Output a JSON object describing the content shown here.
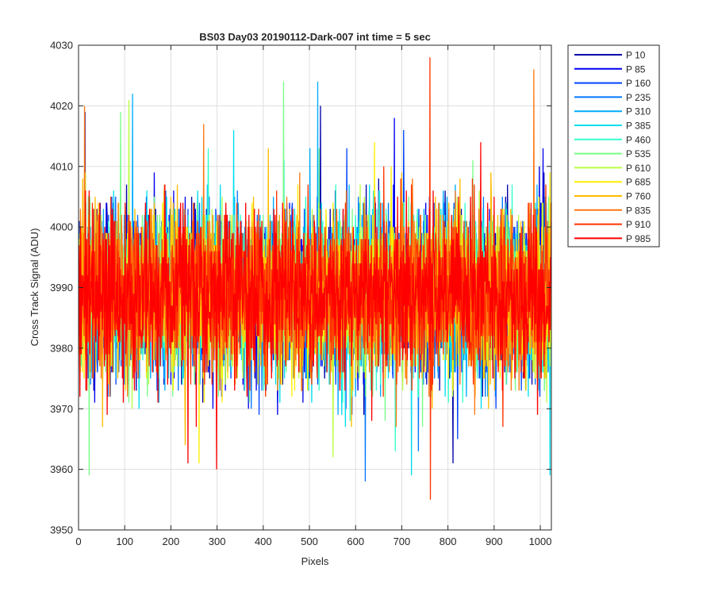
{
  "chart_data": {
    "type": "line",
    "title": "BS03 Day03 20190112-Dark-007 int time = 5 sec",
    "xlabel": "Pixels",
    "ylabel": "Cross Track Signal (ADU)",
    "xlim": [
      0,
      1024
    ],
    "ylim": [
      3950,
      4030
    ],
    "xticks": [
      0,
      100,
      200,
      300,
      400,
      500,
      600,
      700,
      800,
      900,
      1000
    ],
    "yticks": [
      3950,
      3960,
      3970,
      3980,
      3990,
      4000,
      4010,
      4020,
      4030
    ],
    "grid": true,
    "legend_position": "outside-top-right",
    "x_points_per_series": 1024,
    "series": [
      {
        "name": "P 10",
        "color": "#0000aa",
        "center": 3989,
        "spread": 6.5,
        "seed": 11,
        "peaks": [
          [
            13,
            4019
          ],
          [
            523,
            4020
          ],
          [
            617,
            3969
          ],
          [
            810,
            3961
          ]
        ]
      },
      {
        "name": "P 85",
        "color": "#0000ee",
        "center": 3989,
        "spread": 6.5,
        "seed": 23,
        "peaks": [
          [
            683,
            4018
          ],
          [
            430,
            3969
          ],
          [
            1005,
            4013
          ],
          [
            290,
            3970
          ]
        ]
      },
      {
        "name": "P 160",
        "color": "#0044ff",
        "center": 3989,
        "spread": 6.5,
        "seed": 37,
        "peaks": [
          [
            703,
            4016
          ],
          [
            820,
            3965
          ],
          [
            580,
            4013
          ]
        ]
      },
      {
        "name": "P 235",
        "color": "#0078ff",
        "center": 3989,
        "spread": 6.5,
        "seed": 41,
        "peaks": [
          [
            620,
            3958
          ],
          [
            735,
            3963
          ]
        ]
      },
      {
        "name": "P 310",
        "color": "#00acff",
        "center": 3989,
        "spread": 6.5,
        "seed": 53,
        "peaks": [
          [
            517,
            4024
          ],
          [
            116,
            4022
          ],
          [
            500,
            4013
          ]
        ]
      },
      {
        "name": "P 385",
        "color": "#00ddee",
        "center": 3989,
        "spread": 6.5,
        "seed": 67,
        "peaks": [
          [
            720,
            3959
          ],
          [
            1020,
            3959
          ],
          [
            335,
            4016
          ]
        ]
      },
      {
        "name": "P 460",
        "color": "#33ffcc",
        "center": 3989,
        "spread": 6.5,
        "seed": 71,
        "peaks": [
          [
            685,
            3963
          ],
          [
            280,
            4013
          ]
        ]
      },
      {
        "name": "P 535",
        "color": "#77ff88",
        "center": 3989,
        "spread": 6.5,
        "seed": 83,
        "peaks": [
          [
            443,
            4024
          ],
          [
            22,
            3959
          ],
          [
            90,
            4019
          ],
          [
            520,
            4013
          ]
        ]
      },
      {
        "name": "P 610",
        "color": "#bbff44",
        "center": 3989,
        "spread": 6.5,
        "seed": 97,
        "peaks": [
          [
            108,
            4021
          ],
          [
            550,
            3962
          ]
        ]
      },
      {
        "name": "P 685",
        "color": "#ffee00",
        "center": 3989,
        "spread": 6.5,
        "seed": 101,
        "peaks": [
          [
            260,
            3961
          ],
          [
            640,
            4014
          ]
        ]
      },
      {
        "name": "P 760",
        "color": "#ffbb00",
        "center": 3989,
        "spread": 6.5,
        "seed": 113,
        "peaks": [
          [
            230,
            3964
          ],
          [
            410,
            4013
          ],
          [
            590,
            3967
          ]
        ]
      },
      {
        "name": "P 835",
        "color": "#ff7711",
        "center": 3989,
        "spread": 6.5,
        "seed": 127,
        "peaks": [
          [
            12,
            4020
          ],
          [
            985,
            4026
          ],
          [
            270,
            4017
          ]
        ]
      },
      {
        "name": "P 910",
        "color": "#ff3300",
        "center": 3989,
        "spread": 6.5,
        "seed": 131,
        "peaks": [
          [
            760,
            4028
          ],
          [
            761,
            3955
          ],
          [
            660,
            4010
          ]
        ]
      },
      {
        "name": "P 985",
        "color": "#ff0000",
        "center": 3989,
        "spread": 6.5,
        "seed": 139,
        "peaks": [
          [
            298,
            3960
          ],
          [
            870,
            4014
          ],
          [
            236,
            3961
          ]
        ]
      }
    ]
  }
}
